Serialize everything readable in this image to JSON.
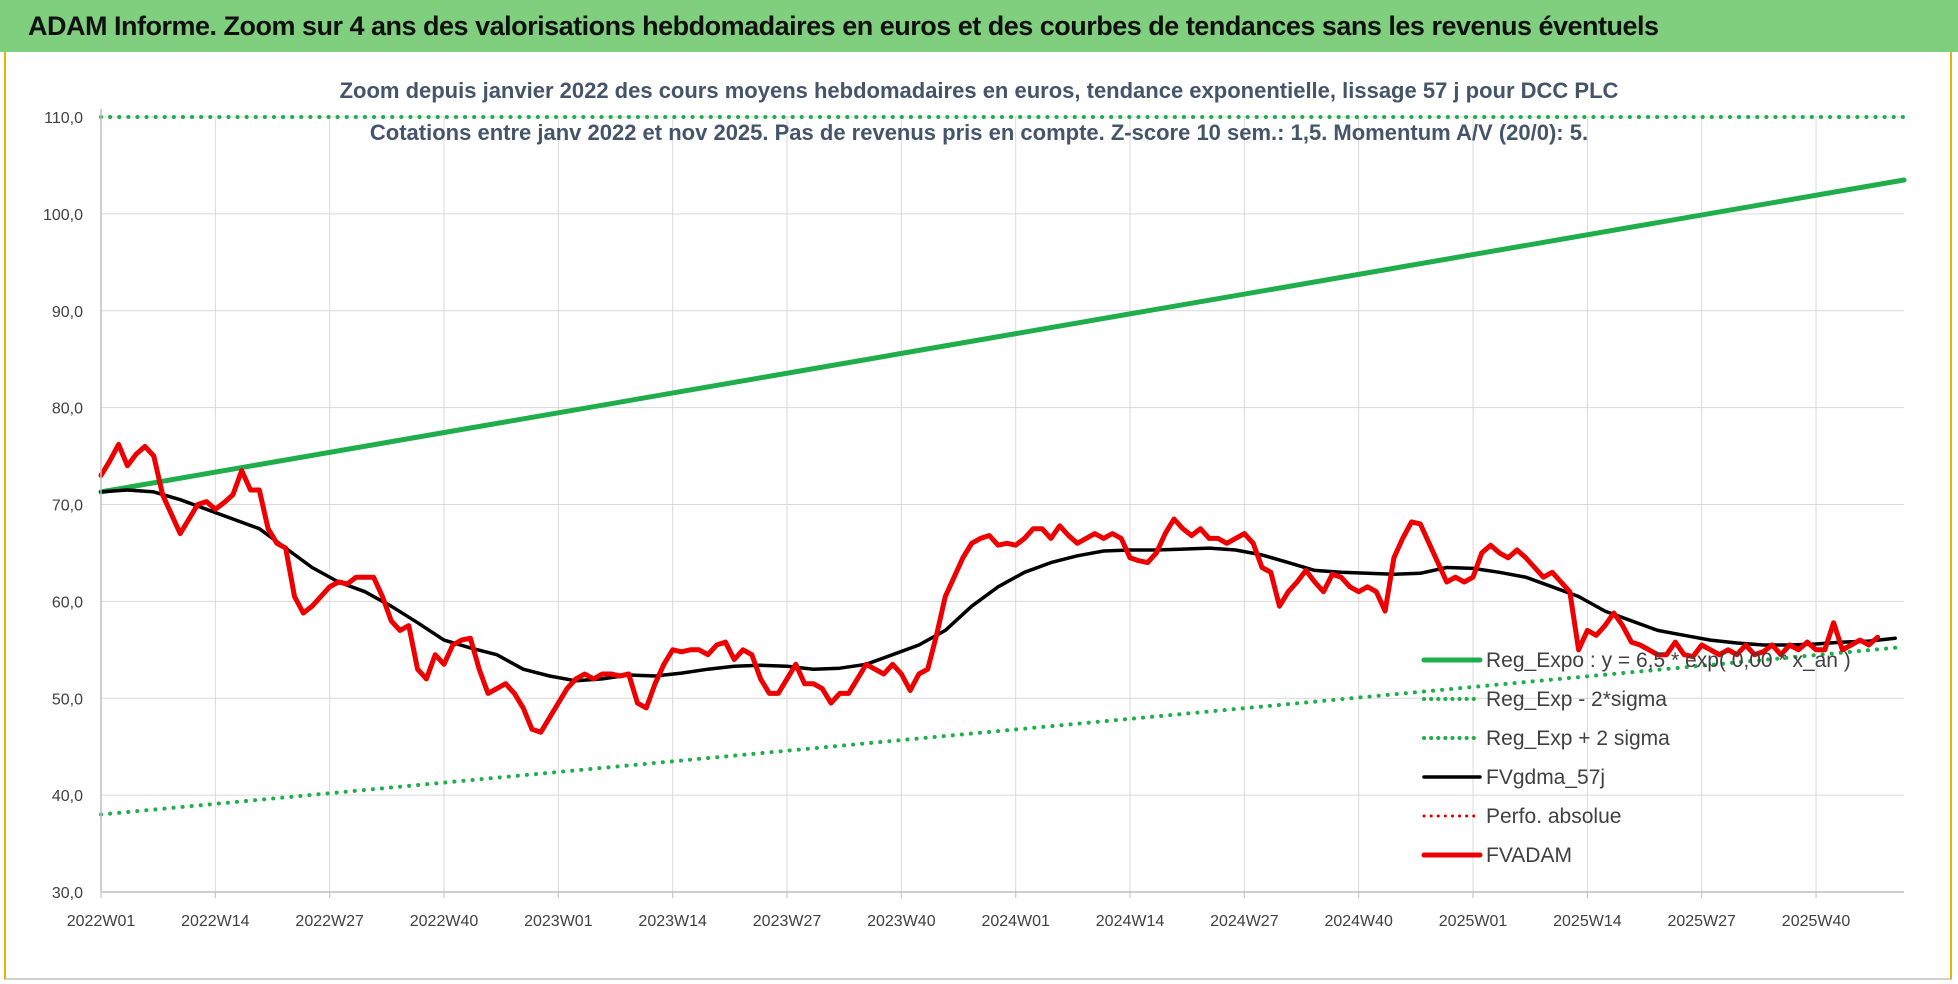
{
  "banner": {
    "title": "ADAM Informe. Zoom sur 4 ans des valorisations hebdomadaires en euros et des courbes de tendances sans les revenus éventuels"
  },
  "chart_data": {
    "type": "line",
    "title": "Zoom depuis janvier 2022 des cours moyens hebdomadaires en euros, tendance exponentielle, lissage 57 j pour DCC PLC",
    "subtitle": "Cotations entre janv 2022 et nov 2025. Pas de revenus pris en compte. Z-score 10 sem.: 1,5. Momentum A/V (20/0): 5.",
    "xlabel": "",
    "ylabel": "",
    "ylim": [
      30,
      110
    ],
    "yticks": [
      "30,0",
      "40,0",
      "50,0",
      "60,0",
      "70,0",
      "80,0",
      "90,0",
      "100,0",
      "110,0"
    ],
    "x_range": [
      0,
      205
    ],
    "x_ticks": [
      {
        "x": 0,
        "label": "2022W01"
      },
      {
        "x": 13,
        "label": "2022W14"
      },
      {
        "x": 26,
        "label": "2022W27"
      },
      {
        "x": 39,
        "label": "2022W40"
      },
      {
        "x": 52,
        "label": "2023W01"
      },
      {
        "x": 65,
        "label": "2023W14"
      },
      {
        "x": 78,
        "label": "2023W27"
      },
      {
        "x": 91,
        "label": "2023W40"
      },
      {
        "x": 104,
        "label": "2024W01"
      },
      {
        "x": 117,
        "label": "2024W14"
      },
      {
        "x": 130,
        "label": "2024W27"
      },
      {
        "x": 143,
        "label": "2024W40"
      },
      {
        "x": 156,
        "label": "2025W01"
      },
      {
        "x": 169,
        "label": "2025W14"
      },
      {
        "x": 182,
        "label": "2025W27"
      },
      {
        "x": 195,
        "label": "2025W40"
      }
    ],
    "grid": true,
    "legend_position": "bottom-right",
    "series": [
      {
        "name": "Reg_Expo : y = 6,5 * exp( 0,00 * x_an )",
        "style": "solid",
        "color": "#1fae4b",
        "width": 5,
        "points": [
          [
            0,
            71.3
          ],
          [
            205,
            103.5
          ]
        ]
      },
      {
        "name": "Reg_Exp - 2*sigma",
        "style": "dotted",
        "color": "#1fae4b",
        "width": 4,
        "points": [
          [
            0,
            38.0
          ],
          [
            205,
            55.3
          ]
        ]
      },
      {
        "name": "Reg_Exp + 2 sigma",
        "style": "dotted",
        "color": "#1fae4b",
        "width": 4,
        "points": [
          [
            0,
            110.0
          ],
          [
            205,
            110.0
          ]
        ]
      },
      {
        "name": "FVgdma_57j",
        "style": "solid",
        "color": "#000000",
        "width": 3.5,
        "points": [
          [
            0,
            71.3
          ],
          [
            3,
            71.5
          ],
          [
            6,
            71.3
          ],
          [
            9,
            70.5
          ],
          [
            12,
            69.5
          ],
          [
            15,
            68.5
          ],
          [
            18,
            67.5
          ],
          [
            21,
            65.5
          ],
          [
            24,
            63.5
          ],
          [
            27,
            62.0
          ],
          [
            30,
            61.0
          ],
          [
            33,
            59.5
          ],
          [
            36,
            57.8
          ],
          [
            39,
            56.0
          ],
          [
            42,
            55.2
          ],
          [
            45,
            54.5
          ],
          [
            48,
            53.0
          ],
          [
            51,
            52.3
          ],
          [
            54,
            51.8
          ],
          [
            57,
            52.0
          ],
          [
            60,
            52.4
          ],
          [
            63,
            52.3
          ],
          [
            66,
            52.6
          ],
          [
            69,
            53.0
          ],
          [
            72,
            53.3
          ],
          [
            75,
            53.4
          ],
          [
            78,
            53.3
          ],
          [
            81,
            53.0
          ],
          [
            84,
            53.1
          ],
          [
            87,
            53.5
          ],
          [
            90,
            54.5
          ],
          [
            93,
            55.5
          ],
          [
            96,
            57.0
          ],
          [
            99,
            59.5
          ],
          [
            102,
            61.5
          ],
          [
            105,
            63.0
          ],
          [
            108,
            64.0
          ],
          [
            111,
            64.7
          ],
          [
            114,
            65.2
          ],
          [
            117,
            65.3
          ],
          [
            120,
            65.3
          ],
          [
            123,
            65.4
          ],
          [
            126,
            65.5
          ],
          [
            129,
            65.3
          ],
          [
            132,
            64.8
          ],
          [
            135,
            64.0
          ],
          [
            138,
            63.2
          ],
          [
            141,
            63.0
          ],
          [
            144,
            62.9
          ],
          [
            147,
            62.8
          ],
          [
            150,
            62.9
          ],
          [
            153,
            63.5
          ],
          [
            156,
            63.4
          ],
          [
            159,
            63.0
          ],
          [
            162,
            62.5
          ],
          [
            165,
            61.5
          ],
          [
            168,
            60.5
          ],
          [
            171,
            59.0
          ],
          [
            174,
            58.0
          ],
          [
            177,
            57.0
          ],
          [
            180,
            56.5
          ],
          [
            183,
            56.0
          ],
          [
            186,
            55.7
          ],
          [
            189,
            55.5
          ],
          [
            192,
            55.5
          ],
          [
            195,
            55.6
          ],
          [
            198,
            55.8
          ],
          [
            201,
            55.9
          ],
          [
            204,
            56.2
          ]
        ]
      },
      {
        "name": "Perfo. absolue",
        "style": "dotted",
        "color": "#e00000",
        "width": 3,
        "points": []
      },
      {
        "name": "FVADAM",
        "style": "solid",
        "color": "#ee0000",
        "width": 5,
        "points": [
          [
            0,
            73.0
          ],
          [
            1,
            74.5
          ],
          [
            2,
            76.2
          ],
          [
            3,
            74.0
          ],
          [
            4,
            75.2
          ],
          [
            5,
            76.0
          ],
          [
            6,
            75.0
          ],
          [
            7,
            71.0
          ],
          [
            8,
            69.0
          ],
          [
            9,
            67.0
          ],
          [
            10,
            68.5
          ],
          [
            11,
            70.0
          ],
          [
            12,
            70.3
          ],
          [
            13,
            69.5
          ],
          [
            14,
            70.2
          ],
          [
            15,
            71.0
          ],
          [
            16,
            73.5
          ],
          [
            17,
            71.5
          ],
          [
            18,
            71.5
          ],
          [
            19,
            67.5
          ],
          [
            20,
            66.0
          ],
          [
            21,
            65.5
          ],
          [
            22,
            60.5
          ],
          [
            23,
            58.8
          ],
          [
            24,
            59.5
          ],
          [
            25,
            60.5
          ],
          [
            26,
            61.5
          ],
          [
            27,
            62.0
          ],
          [
            28,
            61.8
          ],
          [
            29,
            62.5
          ],
          [
            30,
            62.5
          ],
          [
            31,
            62.5
          ],
          [
            32,
            60.5
          ],
          [
            33,
            58.0
          ],
          [
            34,
            57.0
          ],
          [
            35,
            57.5
          ],
          [
            36,
            53.0
          ],
          [
            37,
            52.0
          ],
          [
            38,
            54.5
          ],
          [
            39,
            53.5
          ],
          [
            40,
            55.5
          ],
          [
            41,
            56.0
          ],
          [
            42,
            56.2
          ],
          [
            43,
            53.0
          ],
          [
            44,
            50.5
          ],
          [
            45,
            51.0
          ],
          [
            46,
            51.5
          ],
          [
            47,
            50.5
          ],
          [
            48,
            49.0
          ],
          [
            49,
            46.8
          ],
          [
            50,
            46.5
          ],
          [
            51,
            48.0
          ],
          [
            52,
            49.5
          ],
          [
            53,
            51.0
          ],
          [
            54,
            52.0
          ],
          [
            55,
            52.5
          ],
          [
            56,
            52.0
          ],
          [
            57,
            52.5
          ],
          [
            58,
            52.5
          ],
          [
            59,
            52.3
          ],
          [
            60,
            52.5
          ],
          [
            61,
            49.5
          ],
          [
            62,
            49.0
          ],
          [
            63,
            51.5
          ],
          [
            64,
            53.5
          ],
          [
            65,
            55.0
          ],
          [
            66,
            54.8
          ],
          [
            67,
            55.0
          ],
          [
            68,
            55.0
          ],
          [
            69,
            54.5
          ],
          [
            70,
            55.5
          ],
          [
            71,
            55.8
          ],
          [
            72,
            54.0
          ],
          [
            73,
            55.0
          ],
          [
            74,
            54.5
          ],
          [
            75,
            52.0
          ],
          [
            76,
            50.5
          ],
          [
            77,
            50.5
          ],
          [
            78,
            52.0
          ],
          [
            79,
            53.5
          ],
          [
            80,
            51.5
          ],
          [
            81,
            51.5
          ],
          [
            82,
            51.0
          ],
          [
            83,
            49.5
          ],
          [
            84,
            50.5
          ],
          [
            85,
            50.5
          ],
          [
            86,
            52.0
          ],
          [
            87,
            53.5
          ],
          [
            88,
            53.0
          ],
          [
            89,
            52.5
          ],
          [
            90,
            53.5
          ],
          [
            91,
            52.5
          ],
          [
            92,
            50.8
          ],
          [
            93,
            52.5
          ],
          [
            94,
            53.0
          ],
          [
            95,
            56.5
          ],
          [
            96,
            60.5
          ],
          [
            97,
            62.5
          ],
          [
            98,
            64.5
          ],
          [
            99,
            66.0
          ],
          [
            100,
            66.5
          ],
          [
            101,
            66.8
          ],
          [
            102,
            65.8
          ],
          [
            103,
            66.0
          ],
          [
            104,
            65.8
          ],
          [
            105,
            66.5
          ],
          [
            106,
            67.5
          ],
          [
            107,
            67.5
          ],
          [
            108,
            66.5
          ],
          [
            109,
            67.8
          ],
          [
            110,
            66.8
          ],
          [
            111,
            66.0
          ],
          [
            112,
            66.5
          ],
          [
            113,
            67.0
          ],
          [
            114,
            66.5
          ],
          [
            115,
            67.0
          ],
          [
            116,
            66.5
          ],
          [
            117,
            64.5
          ],
          [
            118,
            64.2
          ],
          [
            119,
            64.0
          ],
          [
            120,
            65.0
          ],
          [
            121,
            67.0
          ],
          [
            122,
            68.5
          ],
          [
            123,
            67.5
          ],
          [
            124,
            66.8
          ],
          [
            125,
            67.5
          ],
          [
            126,
            66.5
          ],
          [
            127,
            66.5
          ],
          [
            128,
            66.0
          ],
          [
            129,
            66.5
          ],
          [
            130,
            67.0
          ],
          [
            131,
            66.0
          ],
          [
            132,
            63.5
          ],
          [
            133,
            63.0
          ],
          [
            134,
            59.5
          ],
          [
            135,
            61.0
          ],
          [
            136,
            62.0
          ],
          [
            137,
            63.2
          ],
          [
            138,
            62.0
          ],
          [
            139,
            61.0
          ],
          [
            140,
            62.8
          ],
          [
            141,
            62.5
          ],
          [
            142,
            61.5
          ],
          [
            143,
            61.0
          ],
          [
            144,
            61.5
          ],
          [
            145,
            61.0
          ],
          [
            146,
            59.0
          ],
          [
            147,
            64.5
          ],
          [
            148,
            66.5
          ],
          [
            149,
            68.2
          ],
          [
            150,
            68.0
          ],
          [
            151,
            66.0
          ],
          [
            152,
            64.0
          ],
          [
            153,
            62.0
          ],
          [
            154,
            62.5
          ],
          [
            155,
            62.0
          ],
          [
            156,
            62.5
          ],
          [
            157,
            65.0
          ],
          [
            158,
            65.8
          ],
          [
            159,
            65.0
          ],
          [
            160,
            64.5
          ],
          [
            161,
            65.3
          ],
          [
            162,
            64.5
          ],
          [
            163,
            63.5
          ],
          [
            164,
            62.5
          ],
          [
            165,
            63.0
          ],
          [
            166,
            62.0
          ],
          [
            167,
            61.0
          ],
          [
            168,
            55.0
          ],
          [
            169,
            57.0
          ],
          [
            170,
            56.5
          ],
          [
            171,
            57.5
          ],
          [
            172,
            58.8
          ],
          [
            173,
            57.5
          ],
          [
            174,
            55.8
          ],
          [
            175,
            55.5
          ],
          [
            176,
            55.0
          ],
          [
            177,
            54.5
          ],
          [
            178,
            54.5
          ],
          [
            179,
            55.8
          ],
          [
            180,
            54.5
          ],
          [
            181,
            54.3
          ],
          [
            182,
            55.5
          ],
          [
            183,
            55.0
          ],
          [
            184,
            54.5
          ],
          [
            185,
            55.0
          ],
          [
            186,
            54.5
          ],
          [
            187,
            55.5
          ],
          [
            188,
            54.5
          ],
          [
            189,
            54.8
          ],
          [
            190,
            55.5
          ],
          [
            191,
            54.5
          ],
          [
            192,
            55.5
          ],
          [
            193,
            55.0
          ],
          [
            194,
            55.8
          ],
          [
            195,
            55.0
          ],
          [
            196,
            55.0
          ],
          [
            197,
            57.8
          ],
          [
            198,
            55.0
          ],
          [
            199,
            55.5
          ],
          [
            200,
            56.0
          ],
          [
            201,
            55.5
          ],
          [
            202,
            56.3
          ]
        ]
      }
    ]
  }
}
